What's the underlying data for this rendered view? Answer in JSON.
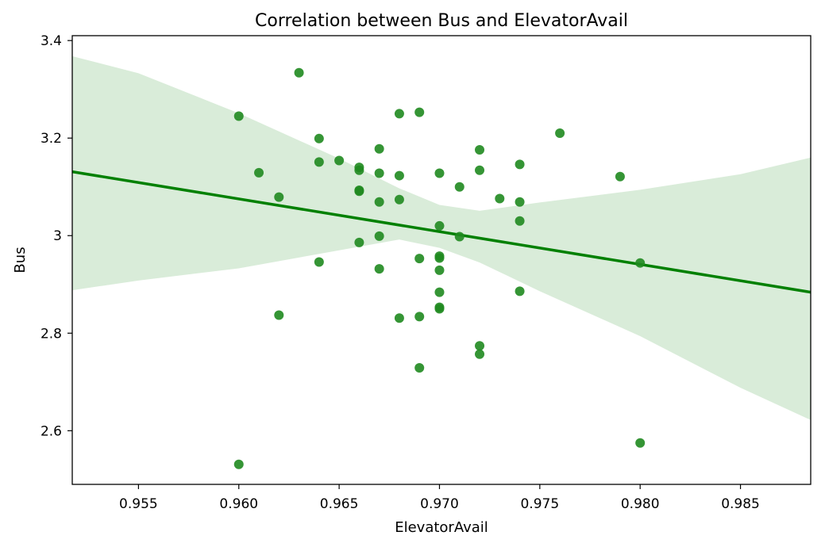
{
  "chart_data": {
    "type": "scatter",
    "title": "Correlation between Bus and ElevatorAvail",
    "xlabel": "ElevatorAvail",
    "ylabel": "Bus",
    "xlim": [
      0.9517,
      0.9885
    ],
    "ylim": [
      2.49,
      3.41
    ],
    "xticks": [
      0.955,
      0.96,
      0.965,
      0.97,
      0.975,
      0.98,
      0.985
    ],
    "xtick_labels": [
      "0.955",
      "0.960",
      "0.965",
      "0.970",
      "0.975",
      "0.980",
      "0.985"
    ],
    "yticks": [
      2.6,
      2.8,
      3.0,
      3.2,
      3.4
    ],
    "ytick_labels": [
      "2.6",
      "2.8",
      "3",
      "3.2",
      "3.4"
    ],
    "grid": false,
    "colors": {
      "points": "#1f8a1f",
      "line": "#008000",
      "band": "#d9ecd9"
    },
    "points": [
      {
        "x": 0.96,
        "y": 3.245
      },
      {
        "x": 0.96,
        "y": 2.531
      },
      {
        "x": 0.961,
        "y": 3.129
      },
      {
        "x": 0.962,
        "y": 3.079
      },
      {
        "x": 0.962,
        "y": 2.837
      },
      {
        "x": 0.963,
        "y": 3.334
      },
      {
        "x": 0.964,
        "y": 3.199
      },
      {
        "x": 0.964,
        "y": 3.151
      },
      {
        "x": 0.964,
        "y": 2.946
      },
      {
        "x": 0.965,
        "y": 3.154
      },
      {
        "x": 0.966,
        "y": 3.14
      },
      {
        "x": 0.966,
        "y": 3.134
      },
      {
        "x": 0.966,
        "y": 3.093
      },
      {
        "x": 0.966,
        "y": 3.091
      },
      {
        "x": 0.966,
        "y": 2.986
      },
      {
        "x": 0.967,
        "y": 3.178
      },
      {
        "x": 0.967,
        "y": 3.128
      },
      {
        "x": 0.967,
        "y": 3.069
      },
      {
        "x": 0.967,
        "y": 2.999
      },
      {
        "x": 0.967,
        "y": 2.932
      },
      {
        "x": 0.968,
        "y": 3.25
      },
      {
        "x": 0.968,
        "y": 3.123
      },
      {
        "x": 0.968,
        "y": 3.074
      },
      {
        "x": 0.968,
        "y": 2.831
      },
      {
        "x": 0.969,
        "y": 3.253
      },
      {
        "x": 0.969,
        "y": 2.953
      },
      {
        "x": 0.969,
        "y": 2.834
      },
      {
        "x": 0.969,
        "y": 2.729
      },
      {
        "x": 0.97,
        "y": 3.128
      },
      {
        "x": 0.97,
        "y": 3.02
      },
      {
        "x": 0.97,
        "y": 2.958
      },
      {
        "x": 0.97,
        "y": 2.954
      },
      {
        "x": 0.97,
        "y": 2.929
      },
      {
        "x": 0.97,
        "y": 2.884
      },
      {
        "x": 0.97,
        "y": 2.853
      },
      {
        "x": 0.97,
        "y": 2.85
      },
      {
        "x": 0.971,
        "y": 3.1
      },
      {
        "x": 0.971,
        "y": 2.998
      },
      {
        "x": 0.972,
        "y": 3.176
      },
      {
        "x": 0.972,
        "y": 3.134
      },
      {
        "x": 0.972,
        "y": 2.774
      },
      {
        "x": 0.972,
        "y": 2.757
      },
      {
        "x": 0.973,
        "y": 3.076
      },
      {
        "x": 0.974,
        "y": 3.146
      },
      {
        "x": 0.974,
        "y": 3.069
      },
      {
        "x": 0.974,
        "y": 3.03
      },
      {
        "x": 0.974,
        "y": 2.886
      },
      {
        "x": 0.976,
        "y": 3.21
      },
      {
        "x": 0.979,
        "y": 3.121
      },
      {
        "x": 0.98,
        "y": 2.944
      },
      {
        "x": 0.98,
        "y": 2.575
      }
    ],
    "regression": {
      "x": [
        0.9517,
        0.9885
      ],
      "y": [
        3.131,
        2.884
      ]
    },
    "confidence_band": {
      "x": [
        0.9517,
        0.955,
        0.96,
        0.965,
        0.968,
        0.97,
        0.972,
        0.975,
        0.98,
        0.985,
        0.9885
      ],
      "upper": [
        3.368,
        3.333,
        3.251,
        3.158,
        3.097,
        3.063,
        3.051,
        3.068,
        3.094,
        3.126,
        3.16
      ],
      "lower": [
        2.888,
        2.908,
        2.933,
        2.97,
        2.992,
        2.975,
        2.945,
        2.886,
        2.794,
        2.688,
        2.622
      ]
    }
  }
}
